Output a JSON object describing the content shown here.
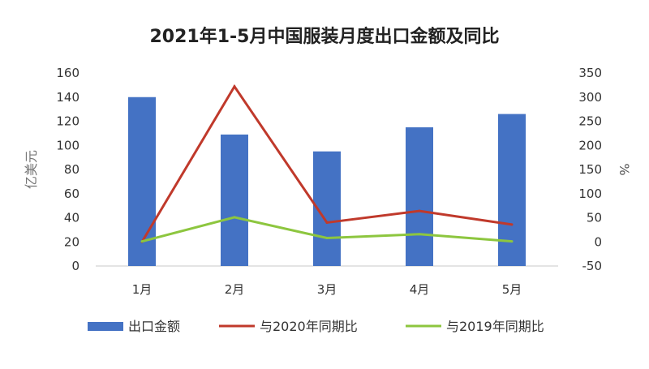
{
  "chart_data": {
    "type": "bar",
    "title": "2021年1-5月中国服装月度出口金额及同比",
    "categories": [
      "1月",
      "2月",
      "3月",
      "4月",
      "5月"
    ],
    "ylabel_left": "亿美元",
    "ylabel_right": "%",
    "ylim_left": [
      0,
      160
    ],
    "ylim_right": [
      -50,
      350
    ],
    "left_ticks": [
      "0",
      "20",
      "40",
      "60",
      "80",
      "100",
      "120",
      "140",
      "160"
    ],
    "right_ticks": [
      "-50",
      "0",
      "50",
      "100",
      "150",
      "200",
      "250",
      "300",
      "350"
    ],
    "grid": false,
    "legend_position": "bottom",
    "series": [
      {
        "name": "出口金额",
        "type": "bar",
        "axis": "left",
        "color": "#4472C4",
        "values": [
          140,
          109,
          95,
          115,
          126
        ]
      },
      {
        "name": "与2020年同期比",
        "type": "line",
        "axis": "right",
        "color": "#C0392B",
        "values": [
          0,
          322,
          40,
          64,
          36
        ]
      },
      {
        "name": "与2019年同期比",
        "type": "line",
        "axis": "right",
        "color": "#8DC63F",
        "values": [
          1,
          51,
          8,
          16,
          1
        ]
      }
    ]
  }
}
